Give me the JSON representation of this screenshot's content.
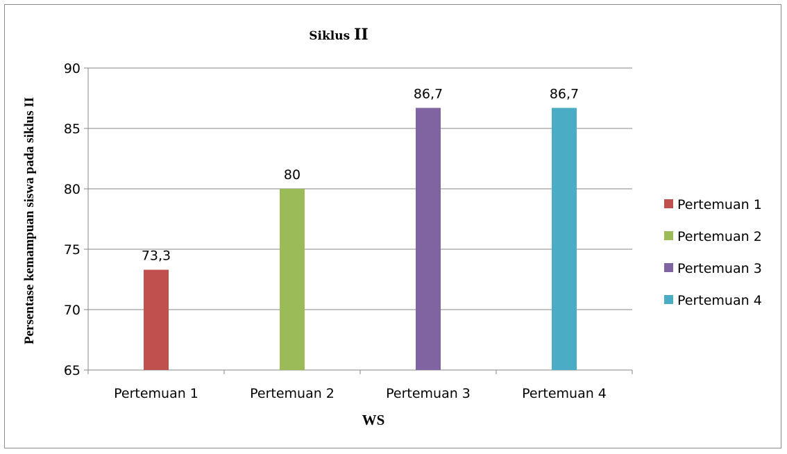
{
  "chart_data": {
    "type": "bar",
    "title_main": "Siklus ",
    "title_roman": "II",
    "xlabel": "WS",
    "ylabel": "Persentase kemampuan siswa pada siklus II",
    "ylim": [
      65,
      90
    ],
    "yticks": [
      65,
      70,
      75,
      80,
      85,
      90
    ],
    "grid": true,
    "legend_position": "right",
    "categories": [
      "Pertemuan 1",
      "Pertemuan 2",
      "Pertemuan 3",
      "Pertemuan 4"
    ],
    "series": [
      {
        "name": "Pertemuan 1",
        "color": "#c0504d",
        "values": [
          73.3,
          null,
          null,
          null
        ],
        "labels": [
          "73,3",
          "",
          "",
          ""
        ]
      },
      {
        "name": "Pertemuan 2",
        "color": "#9bbb59",
        "values": [
          null,
          80,
          null,
          null
        ],
        "labels": [
          "",
          "80",
          "",
          ""
        ]
      },
      {
        "name": "Pertemuan 3",
        "color": "#8064a2",
        "values": [
          null,
          null,
          86.7,
          null
        ],
        "labels": [
          "",
          "",
          "86,7",
          ""
        ]
      },
      {
        "name": "Pertemuan 4",
        "color": "#4bacc6",
        "values": [
          null,
          null,
          null,
          86.7
        ],
        "labels": [
          "",
          "",
          "",
          "86,7"
        ]
      }
    ]
  }
}
